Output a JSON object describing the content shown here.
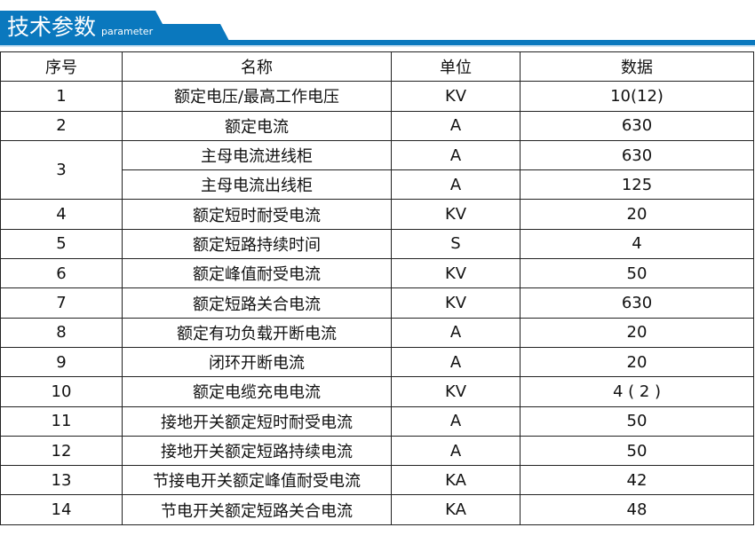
{
  "header": {
    "title": "技术参数",
    "subtitle": "parameter",
    "accent": "#0a78be"
  },
  "table": {
    "columns": [
      "序号",
      "名称",
      "单位",
      "数据"
    ],
    "rows": [
      {
        "no": "1",
        "name": "额定电压/最高工作电压",
        "unit": "KV",
        "value": "10(12)"
      },
      {
        "no": "2",
        "name": "额定电流",
        "unit": "A",
        "value": "630"
      },
      {
        "no": "3",
        "name": "主母电流进线柜",
        "unit": "A",
        "value": "630"
      },
      {
        "no": "",
        "name": "主母电流出线柜",
        "unit": "A",
        "value": "125"
      },
      {
        "no": "4",
        "name": "额定短时耐受电流",
        "unit": "KV",
        "value": "20"
      },
      {
        "no": "5",
        "name": "额定短路持续时间",
        "unit": "S",
        "value": "4"
      },
      {
        "no": "6",
        "name": "额定峰值耐受电流",
        "unit": "KV",
        "value": "50"
      },
      {
        "no": "7",
        "name": "额定短路关合电流",
        "unit": "KV",
        "value": "630"
      },
      {
        "no": "8",
        "name": "额定有功负载开断电流",
        "unit": "A",
        "value": "20"
      },
      {
        "no": "9",
        "name": "闭环开断电流",
        "unit": "A",
        "value": "20"
      },
      {
        "no": "10",
        "name": "额定电缆充电电流",
        "unit": "KV",
        "value": "4 ( 2 )"
      },
      {
        "no": "11",
        "name": "接地开关额定短时耐受电流",
        "unit": "A",
        "value": "50"
      },
      {
        "no": "12",
        "name": "接地开关额定短路持续电流",
        "unit": "A",
        "value": "50"
      },
      {
        "no": "13",
        "name": "节接电开关额定峰值耐受电流",
        "unit": "KA",
        "value": "42"
      },
      {
        "no": "14",
        "name": "节电开关额定短路关合电流",
        "unit": "KA",
        "value": "48"
      }
    ]
  }
}
